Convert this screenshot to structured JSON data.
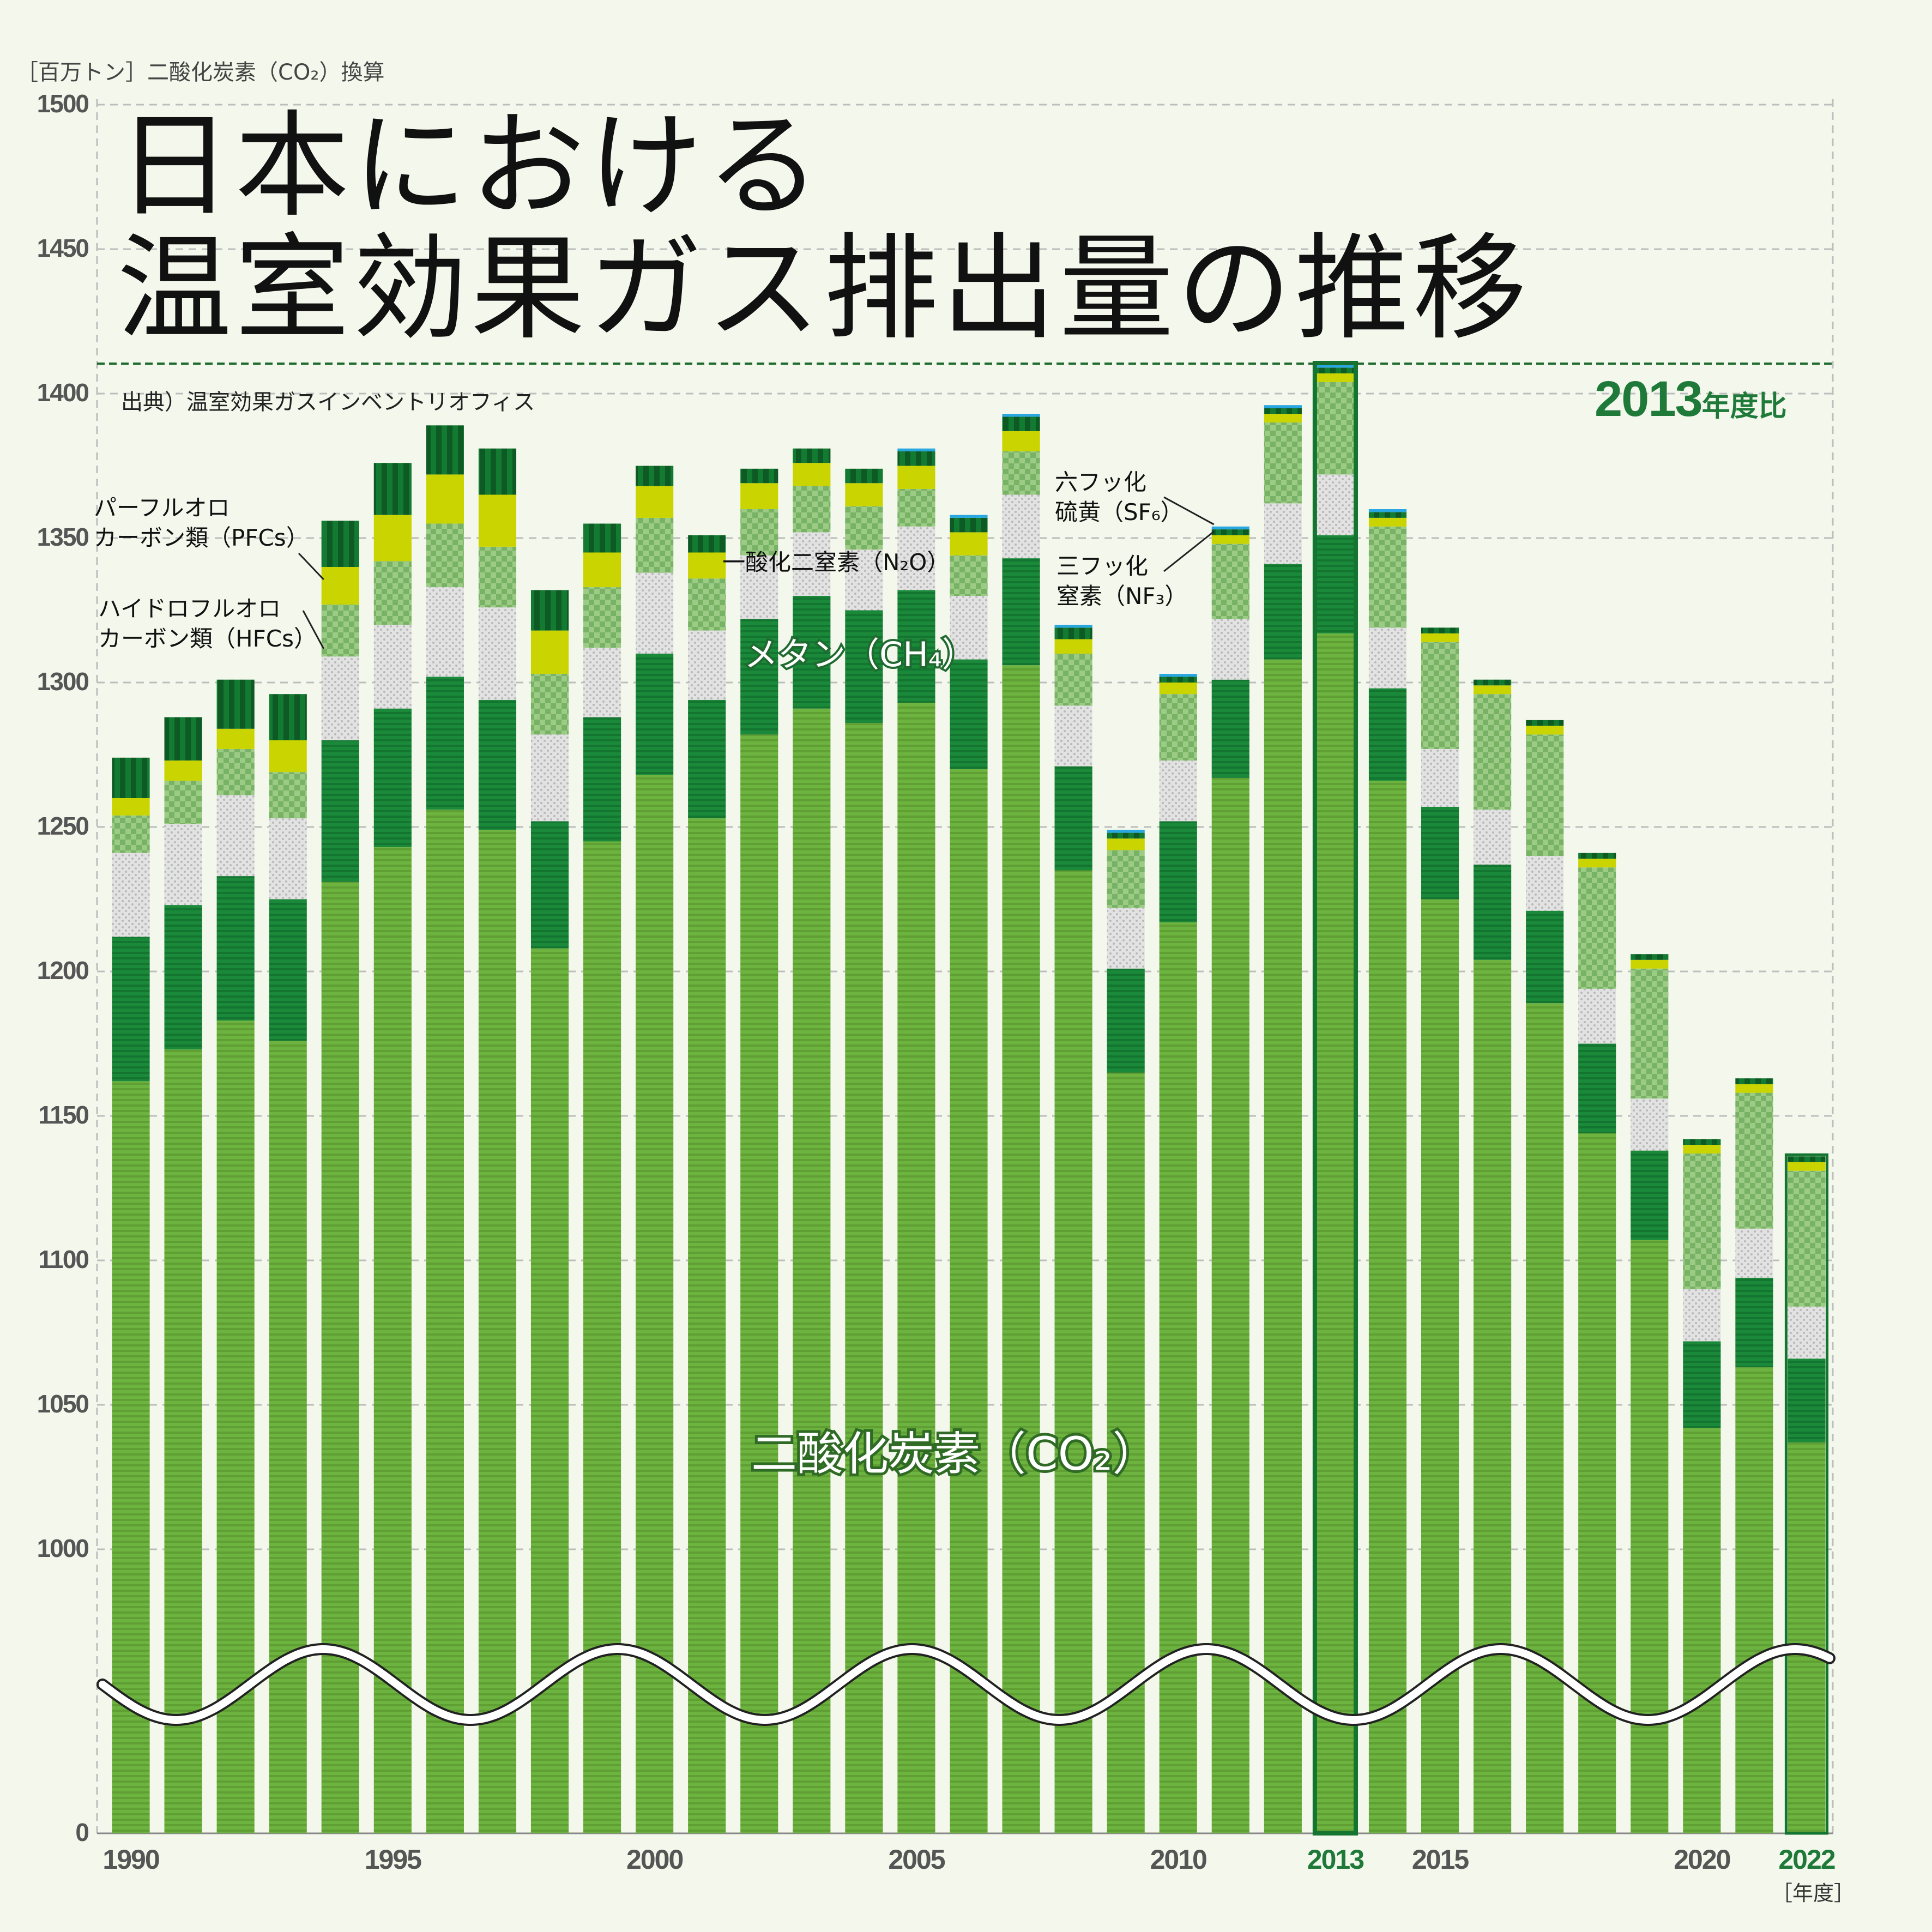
{
  "chart_data": {
    "type": "bar",
    "stacked": true,
    "title_line1": "日本における",
    "title_line2": "温室効果ガス排出量の推移",
    "source": "出典）温室効果ガスインベントリオフィス",
    "unit_label": "［百万トン］二酸化炭素（CO₂）換算",
    "x_unit": "［年度］",
    "reference_label_year": "2013",
    "reference_label_suffix": "年度比",
    "reference_year": 2013,
    "y_ticks": [
      "1500",
      "1450",
      "1400",
      "1350",
      "1300",
      "1250",
      "1200",
      "1150",
      "1100",
      "1050",
      "1000",
      "0"
    ],
    "y_axis_break": true,
    "grid": true,
    "x_tick_labels": [
      "1990",
      "1995",
      "2000",
      "2005",
      "2010",
      "2013",
      "2015",
      "2020",
      "2022"
    ],
    "highlight_ticks": [
      "2013",
      "2022"
    ],
    "categories": [
      "1990",
      "1991",
      "1992",
      "1993",
      "1994",
      "1995",
      "1996",
      "1997",
      "1998",
      "1999",
      "2000",
      "2001",
      "2002",
      "2003",
      "2004",
      "2005",
      "2006",
      "2007",
      "2008",
      "2009",
      "2010",
      "2011",
      "2012",
      "2013",
      "2014",
      "2015",
      "2016",
      "2017",
      "2018",
      "2019",
      "2020",
      "2021",
      "2022"
    ],
    "series": [
      {
        "name": "二酸化炭素（CO₂）",
        "color": "#6db33f",
        "values": [
          1162,
          1173,
          1183,
          1176,
          1231,
          1243,
          1256,
          1249,
          1208,
          1245,
          1268,
          1253,
          1282,
          1291,
          1286,
          1293,
          1270,
          1306,
          1235,
          1165,
          1217,
          1267,
          1308,
          1317,
          1266,
          1225,
          1204,
          1189,
          1144,
          1107,
          1042,
          1063,
          1037
        ]
      },
      {
        "name": "メタン（CH₄）",
        "color": "#1a8a3a",
        "values": [
          50,
          50,
          50,
          49,
          49,
          48,
          46,
          45,
          44,
          43,
          42,
          41,
          40,
          39,
          39,
          39,
          38,
          37,
          36,
          36,
          35,
          34,
          33,
          34,
          32,
          32,
          33,
          32,
          31,
          31,
          30,
          31,
          29
        ]
      },
      {
        "name": "一酸化二窒素（N₂O）",
        "color": "#d0d0d0",
        "values": [
          29,
          28,
          28,
          28,
          29,
          29,
          31,
          32,
          30,
          24,
          28,
          24,
          22,
          22,
          21,
          22,
          22,
          22,
          21,
          21,
          21,
          21,
          21,
          21,
          21,
          20,
          19,
          19,
          19,
          18,
          18,
          17,
          18
        ]
      },
      {
        "name": "ハイドロフルオロカーボン類（HFCs）",
        "color": "#8fc27a",
        "values": [
          13,
          15,
          16,
          16,
          18,
          22,
          22,
          21,
          21,
          21,
          19,
          18,
          16,
          16,
          15,
          13,
          14,
          15,
          18,
          20,
          23,
          26,
          28,
          32,
          35,
          37,
          40,
          42,
          42,
          45,
          47,
          47,
          47
        ]
      },
      {
        "name": "パーフルオロカーボン類（PFCs）",
        "color": "#c9d400",
        "values": [
          6,
          7,
          7,
          11,
          13,
          16,
          17,
          18,
          15,
          12,
          11,
          9,
          9,
          8,
          8,
          8,
          8,
          7,
          5,
          4,
          4,
          3,
          3,
          3,
          3,
          3,
          3,
          3,
          3,
          3,
          3,
          3,
          3
        ]
      },
      {
        "name": "六フッ化硫黄（SF₆）",
        "color": "#0e5a24",
        "values": [
          14,
          15,
          17,
          16,
          16,
          18,
          17,
          16,
          14,
          10,
          7,
          6,
          5,
          5,
          5,
          5,
          5,
          5,
          4,
          2,
          2,
          2,
          2,
          2,
          2,
          2,
          2,
          2,
          2,
          2,
          2,
          2,
          2
        ]
      },
      {
        "name": "三フッ化窒素（NF₃）",
        "color": "#29a7e0",
        "values": [
          0,
          0,
          0,
          0,
          0,
          0,
          0,
          0,
          0,
          0,
          0,
          0,
          0,
          0,
          0,
          1,
          1,
          1,
          1,
          1,
          1,
          1,
          1,
          1,
          1,
          0,
          0,
          0,
          0,
          0,
          0,
          0,
          0
        ]
      }
    ],
    "annotations": {
      "co2": "二酸化炭素（CO₂）",
      "ch4": "メタン（CH₄）",
      "n2o": "一酸化二窒素（N₂O）",
      "hfcs_line1": "ハイドロフルオロ",
      "hfcs_line2": "カーボン類（HFCs）",
      "pfcs_line1": "パーフルオロ",
      "pfcs_line2": "カーボン類（PFCs）",
      "sf6_line1": "六フッ化",
      "sf6_line2": "硫黄（SF₆）",
      "nf3_line1": "三フッ化",
      "nf3_line2": "窒素（NF₃）"
    }
  }
}
